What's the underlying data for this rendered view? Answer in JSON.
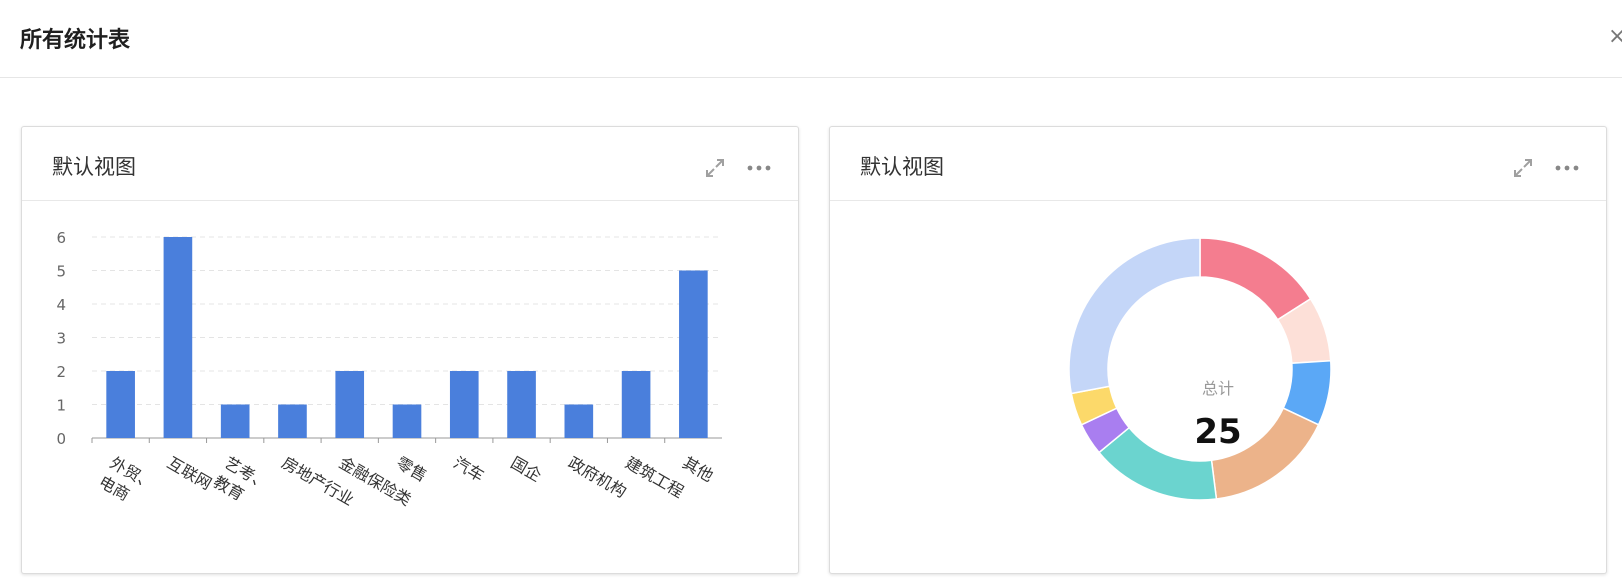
{
  "header": {
    "title": "所有统计表",
    "close_label": "×"
  },
  "left_card": {
    "title": "默认视图",
    "expand_icon": "expand-icon",
    "more_icon": "more-icon"
  },
  "right_card": {
    "title": "默认视图",
    "expand_icon": "expand-icon",
    "more_icon": "more-icon"
  },
  "chart_data": [
    {
      "type": "bar",
      "categories": [
        "外贸、电商",
        "互联网",
        "艺考、教育",
        "房地产行业",
        "金融保险类",
        "零售",
        "汽车",
        "国企",
        "政府机构",
        "建筑工程",
        "其他"
      ],
      "values": [
        2,
        6,
        1,
        1,
        2,
        1,
        2,
        2,
        1,
        2,
        5
      ],
      "ylim": [
        0,
        6
      ],
      "yticks": [
        0,
        1,
        2,
        3,
        4,
        5,
        6
      ],
      "grid": true,
      "bar_color": "#4a7fdc"
    },
    {
      "type": "pie",
      "subtype": "donut",
      "center_label": "总计",
      "total": "25",
      "values": [
        4,
        2,
        2,
        4,
        4,
        1,
        1,
        7
      ],
      "colors": [
        "#f47d8f",
        "#fde0d8",
        "#5ba8f6",
        "#ecb38a",
        "#6bd4cf",
        "#a97ef0",
        "#fcd96a",
        "#c4d6f8"
      ]
    }
  ]
}
